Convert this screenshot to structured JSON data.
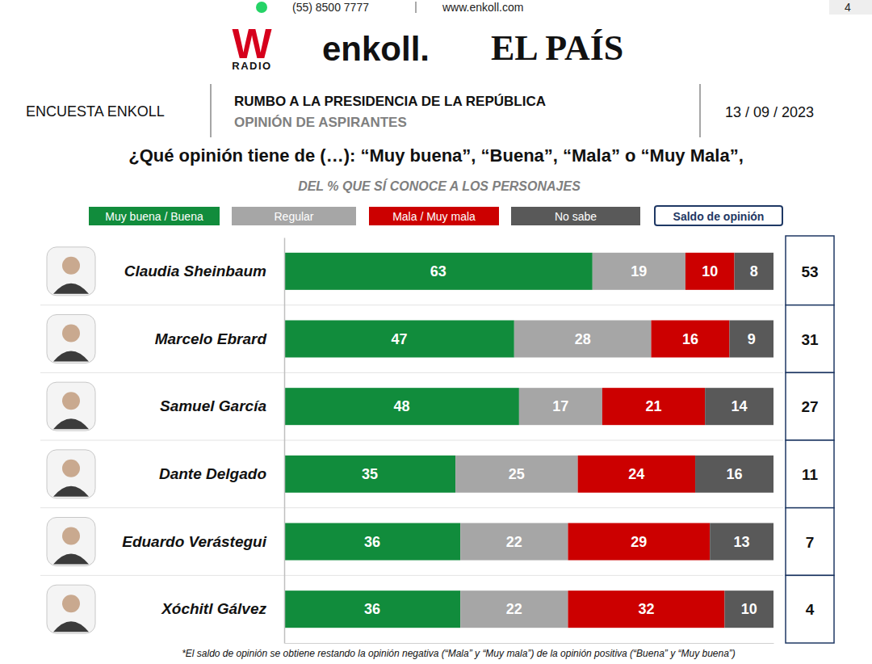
{
  "header": {
    "phone": "(55) 8500 7777",
    "website": "www.enkoll.com",
    "page": "4",
    "logos": [
      "W",
      "RADIO",
      "enkoll.",
      "EL PAÍS"
    ],
    "survey": "ENCUESTA ENKOLL",
    "heading": "RUMBO A LA PRESIDENCIA DE LA REPÚBLICA",
    "subheading": "OPINIÓN DE ASPIRANTES",
    "date": "13 / 09 / 2023"
  },
  "chart_data": {
    "type": "bar",
    "orientation": "horizontal",
    "stacked": true,
    "data_labels": true,
    "tick_labels": "y",
    "legend": "top",
    "title": "¿Qué opinión tiene de (…): “Muy buena”, “Buena”, “Mala” o “Muy Mala”,",
    "subtitle": "DEL % QUE SÍ CONOCE A LOS PERSONAJES",
    "categories": [
      "Claudia Sheinbaum",
      "Marcelo Ebrard",
      "Samuel García",
      "Dante Delgado",
      "Eduardo Verástegui",
      "Xóchitl Gálvez"
    ],
    "series": [
      {
        "name": "Muy buena / Buena",
        "color": "#118c3c",
        "values": [
          63,
          47,
          48,
          35,
          36,
          36
        ]
      },
      {
        "name": "Regular",
        "color": "#a6a6a6",
        "values": [
          19,
          28,
          17,
          25,
          22,
          22
        ]
      },
      {
        "name": "Mala / Muy mala",
        "color": "#cc0000",
        "values": [
          10,
          16,
          21,
          24,
          29,
          32
        ]
      },
      {
        "name": "No sabe",
        "color": "#595959",
        "values": [
          8,
          9,
          14,
          16,
          13,
          10
        ]
      }
    ],
    "balance": {
      "name": "Saldo de opinión",
      "color": "#1f3864",
      "values": [
        53,
        31,
        27,
        11,
        7,
        4
      ]
    },
    "xlim": [
      0,
      100
    ],
    "xticks": [],
    "footnote": "*El saldo de opinión se obtiene restando la opinión negativa (“Mala” y “Muy mala”) de la opinión positiva (“Buena” y “Muy buena”)"
  }
}
